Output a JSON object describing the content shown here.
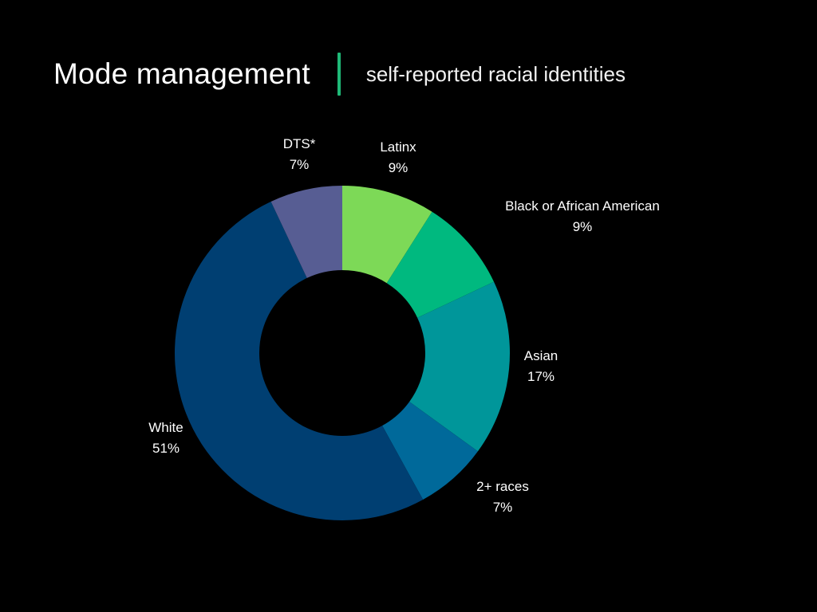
{
  "header": {
    "title": "Mode management",
    "subtitle": "self-reported racial identities",
    "divider_color": "#1fb877"
  },
  "chart_data": {
    "type": "pie",
    "donut": true,
    "series": [
      {
        "name": "Latinx",
        "label": "9%",
        "value": 9,
        "color": "#7dd957"
      },
      {
        "name": "Black or African American",
        "label": "9%",
        "value": 9,
        "color": "#00b97f"
      },
      {
        "name": "Asian",
        "label": "17%",
        "value": 17,
        "color": "#00969a"
      },
      {
        "name": "2+ races",
        "label": "7%",
        "value": 7,
        "color": "#00699a"
      },
      {
        "name": "White",
        "label": "51%",
        "value": 51,
        "color": "#003f72"
      },
      {
        "name": "DTS*",
        "label": "7%",
        "value": 7,
        "color": "#575d93"
      }
    ]
  }
}
